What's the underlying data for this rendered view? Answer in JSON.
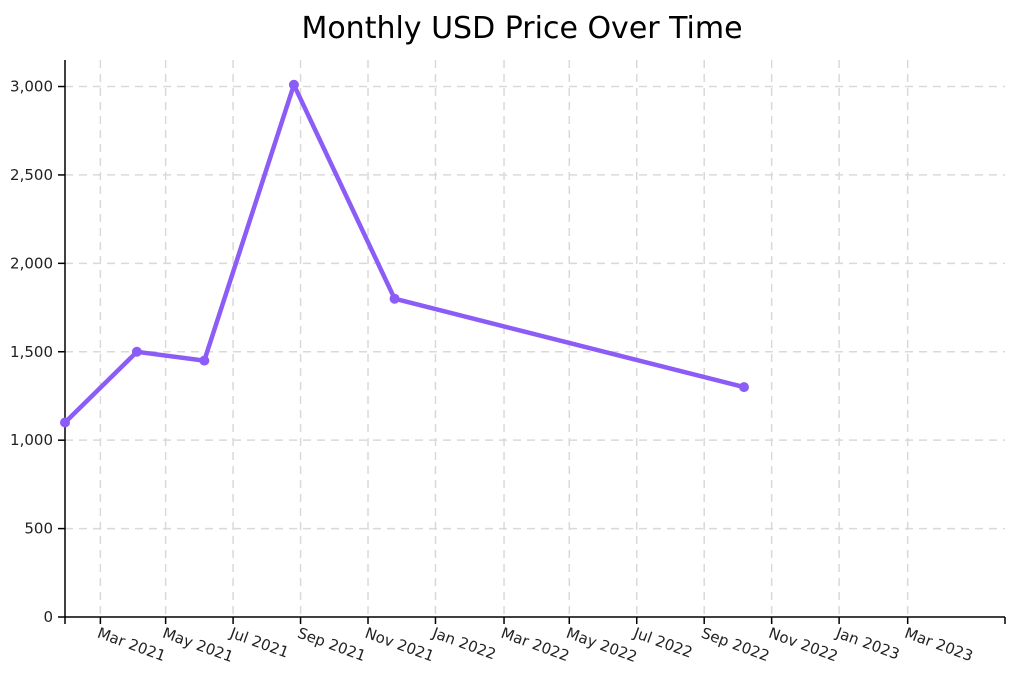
{
  "chart_data": {
    "type": "line",
    "title": "Monthly USD Price Over Time",
    "xlabel": "",
    "ylabel": "",
    "x_axis": {
      "type": "date",
      "domain": [
        "2020-12-31",
        "2023-04-30"
      ],
      "ticks": [
        {
          "date": "2021-02-01",
          "label": "Mar 2021"
        },
        {
          "date": "2021-04-01",
          "label": "May 2021"
        },
        {
          "date": "2021-06-01",
          "label": "Jul 2021"
        },
        {
          "date": "2021-08-01",
          "label": "Sep 2021"
        },
        {
          "date": "2021-10-01",
          "label": "Nov 2021"
        },
        {
          "date": "2021-12-01",
          "label": "Jan 2022"
        },
        {
          "date": "2022-02-01",
          "label": "Mar 2022"
        },
        {
          "date": "2022-04-01",
          "label": "May 2022"
        },
        {
          "date": "2022-06-01",
          "label": "Jul 2022"
        },
        {
          "date": "2022-08-01",
          "label": "Sep 2022"
        },
        {
          "date": "2022-10-01",
          "label": "Nov 2022"
        },
        {
          "date": "2022-12-01",
          "label": "Jan 2023"
        },
        {
          "date": "2023-02-01",
          "label": "Mar 2023"
        }
      ]
    },
    "y_axis": {
      "ylim": [
        0,
        3150
      ],
      "ticks": [
        {
          "value": 0,
          "label": "0"
        },
        {
          "value": 500,
          "label": "500"
        },
        {
          "value": 1000,
          "label": "1,000"
        },
        {
          "value": 1500,
          "label": "1,500"
        },
        {
          "value": 2000,
          "label": "2,000"
        },
        {
          "value": 2500,
          "label": "2,500"
        },
        {
          "value": 3000,
          "label": "3,000"
        }
      ]
    },
    "grid": true,
    "legend": "none",
    "series": [
      {
        "color": "#8b5cf6",
        "points": [
          {
            "x": "2020-12-31",
            "y": 1100
          },
          {
            "x": "2021-03-06",
            "y": 1500
          },
          {
            "x": "2021-05-06",
            "y": 1450
          },
          {
            "x": "2021-07-26",
            "y": 3010
          },
          {
            "x": "2021-10-25",
            "y": 1800
          },
          {
            "x": "2022-09-06",
            "y": 1300
          }
        ]
      }
    ]
  }
}
